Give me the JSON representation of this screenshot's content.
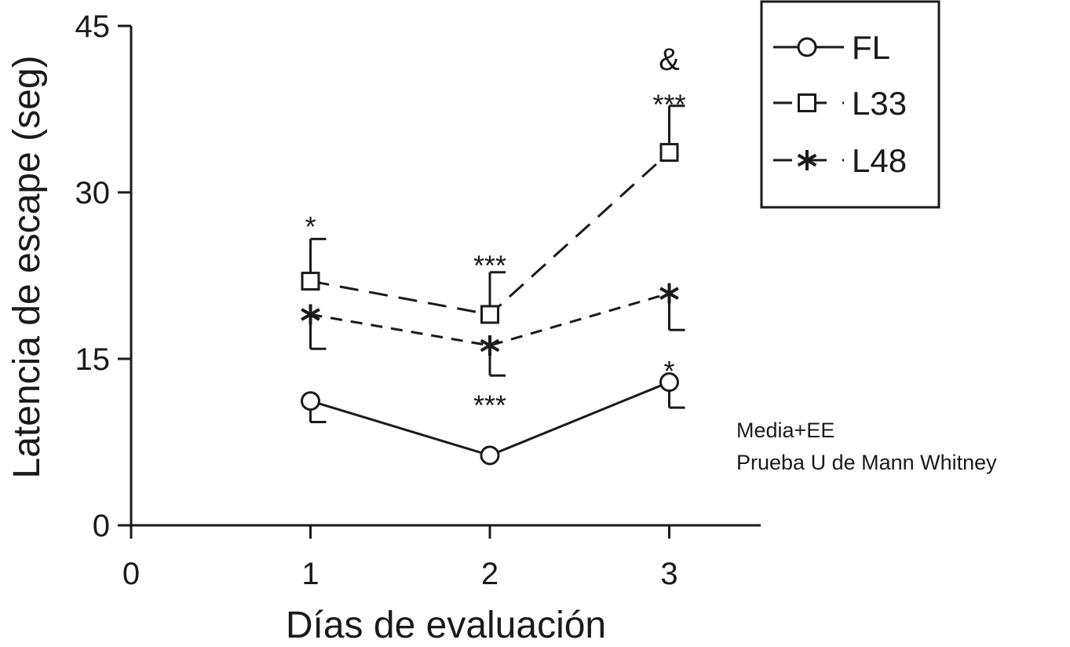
{
  "chart_data": {
    "type": "line",
    "xlabel": "Días de evaluación",
    "ylabel": "Latencia de escape (seg)",
    "xlim": [
      0,
      3.6
    ],
    "ylim": [
      0,
      45
    ],
    "xticks": [
      "0",
      "1",
      "2",
      "3"
    ],
    "yticks": [
      "0",
      "15",
      "30",
      "45"
    ],
    "x": [
      1,
      2,
      3
    ],
    "series": [
      {
        "name": "FL",
        "marker": "circle",
        "linestyle": "solid",
        "values": [
          11.2,
          6.3,
          12.9
        ],
        "errors": [
          1.9,
          0,
          2.3
        ],
        "error_direction": "down"
      },
      {
        "name": "L33",
        "marker": "square",
        "linestyle": "dashed",
        "values": [
          22.0,
          19.0,
          33.6
        ],
        "errors": [
          3.8,
          3.8,
          4.2
        ],
        "error_direction": "up"
      },
      {
        "name": "L48",
        "marker": "asterisk",
        "linestyle": "dashed",
        "values": [
          19.0,
          16.2,
          20.9
        ],
        "errors": [
          3.1,
          2.7,
          3.3
        ],
        "error_direction": "down"
      }
    ],
    "annotations": [
      {
        "text": "*",
        "x": 1,
        "y": 27.3
      },
      {
        "text": "***",
        "x": 2,
        "y": 23.8
      },
      {
        "text": "***",
        "x": 2,
        "y": 11.2
      },
      {
        "text": "*",
        "x": 3,
        "y": 14.3
      },
      {
        "text": "***",
        "x": 3,
        "y": 38.3
      },
      {
        "text": "&",
        "x": 3,
        "y": 42.3
      }
    ],
    "legend_position": "top-right",
    "notes": [
      "Media+EE",
      "Prueba U de Mann Whitney"
    ]
  }
}
